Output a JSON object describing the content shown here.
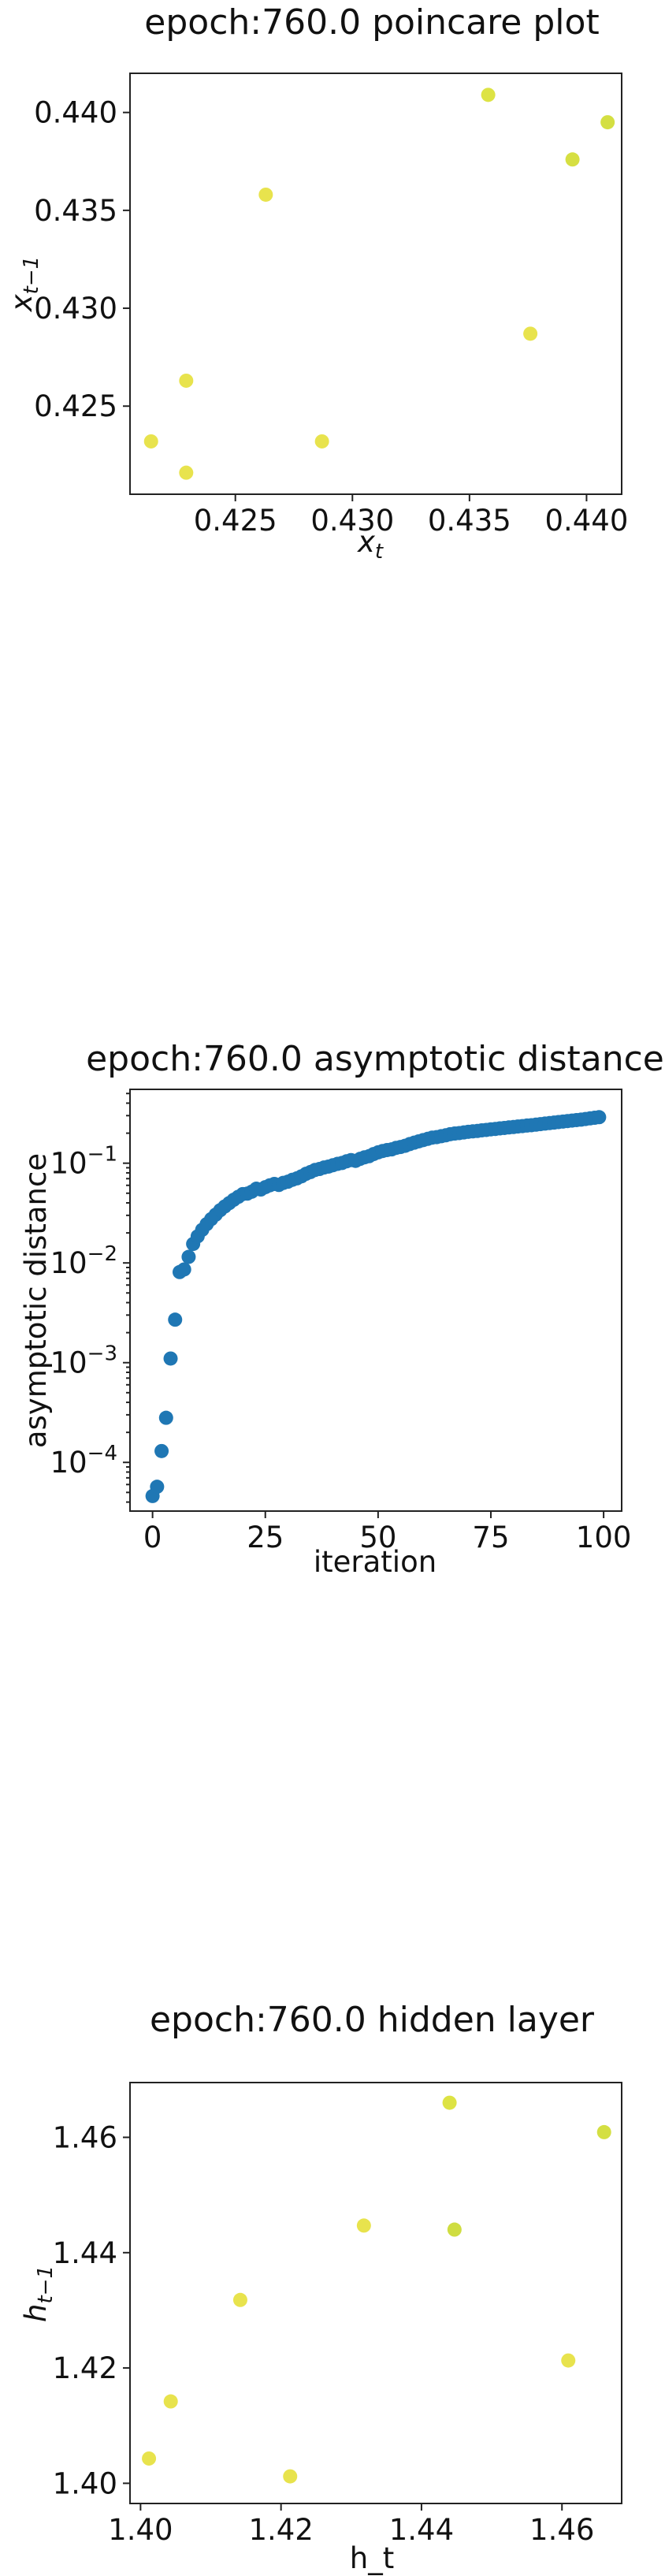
{
  "chart_data": [
    {
      "type": "scatter",
      "title": "epoch:760.0 poincare plot",
      "xlabel": "x",
      "xlabel_sub": "t",
      "ylabel": "x",
      "ylabel_sub": "t−1",
      "xlim": [
        0.4205,
        0.4415
      ],
      "ylim": [
        0.4205,
        0.442
      ],
      "xticks": [
        0.425,
        0.43,
        0.435,
        0.44
      ],
      "xtick_labels": [
        "0.425",
        "0.430",
        "0.435",
        "0.440"
      ],
      "yticks": [
        0.425,
        0.43,
        0.435,
        0.44
      ],
      "ytick_labels": [
        "0.425",
        "0.430",
        "0.435",
        "0.440"
      ],
      "grid": false,
      "points": [
        {
          "x": 0.4214,
          "y": 0.4232,
          "color": "#e6e03a"
        },
        {
          "x": 0.4229,
          "y": 0.4263,
          "color": "#e6e03a"
        },
        {
          "x": 0.4229,
          "y": 0.4216,
          "color": "#e6e03a"
        },
        {
          "x": 0.4263,
          "y": 0.4358,
          "color": "#e6e03a"
        },
        {
          "x": 0.4287,
          "y": 0.4232,
          "color": "#e6e03a"
        },
        {
          "x": 0.4358,
          "y": 0.4409,
          "color": "#d9e030"
        },
        {
          "x": 0.4376,
          "y": 0.4287,
          "color": "#e6e03a"
        },
        {
          "x": 0.4394,
          "y": 0.4376,
          "color": "#d2dc2e"
        },
        {
          "x": 0.4409,
          "y": 0.4395,
          "color": "#cfdb2d"
        }
      ]
    },
    {
      "type": "scatter",
      "title": "epoch:760.0 asymptotic distance",
      "xlabel": "iteration",
      "ylabel": "asymptotic distance",
      "yscale": "log",
      "xlim": [
        -5,
        104
      ],
      "ylim": [
        3.25e-05,
        0.55
      ],
      "xticks": [
        0,
        25,
        50,
        75,
        100
      ],
      "xtick_labels": [
        "0",
        "25",
        "50",
        "75",
        "100"
      ],
      "yticks": [
        0.0001,
        0.001,
        0.01,
        0.1
      ],
      "ytick_labels": [
        "10",
        "10",
        "10",
        "10"
      ],
      "ytick_exponents": [
        "−4",
        "−3",
        "−2",
        "−1"
      ],
      "grid": false,
      "marker_color": "#1f77b4",
      "x": [
        0,
        1,
        2,
        3,
        4,
        5,
        6,
        7,
        8,
        9,
        10,
        11,
        12,
        13,
        14,
        15,
        16,
        17,
        18,
        19,
        20,
        21,
        22,
        23,
        24,
        25,
        26,
        27,
        28,
        29,
        30,
        31,
        32,
        33,
        34,
        35,
        36,
        37,
        38,
        39,
        40,
        41,
        42,
        43,
        44,
        45,
        46,
        47,
        48,
        49,
        50,
        51,
        52,
        53,
        54,
        55,
        56,
        57,
        58,
        59,
        60,
        61,
        62,
        63,
        64,
        65,
        66,
        67,
        68,
        69,
        70,
        71,
        72,
        73,
        74,
        75,
        76,
        77,
        78,
        79,
        80,
        81,
        82,
        83,
        84,
        85,
        86,
        87,
        88,
        89,
        90,
        91,
        92,
        93,
        94,
        95,
        96,
        97,
        98,
        99
      ],
      "y": [
        4.6e-05,
        5.7e-05,
        0.00013,
        0.00028,
        0.0011,
        0.0027,
        0.0081,
        0.0086,
        0.0115,
        0.0155,
        0.0185,
        0.0215,
        0.0245,
        0.0275,
        0.0305,
        0.0338,
        0.0368,
        0.0398,
        0.043,
        0.046,
        0.049,
        0.0495,
        0.0518,
        0.0555,
        0.0545,
        0.0575,
        0.06,
        0.062,
        0.0605,
        0.0635,
        0.0652,
        0.0682,
        0.0705,
        0.0738,
        0.0782,
        0.0815,
        0.0855,
        0.0875,
        0.0905,
        0.0925,
        0.0955,
        0.0985,
        0.1005,
        0.1045,
        0.1075,
        0.1055,
        0.1105,
        0.1145,
        0.1175,
        0.1235,
        0.1285,
        0.1325,
        0.1355,
        0.1375,
        0.1425,
        0.1455,
        0.1495,
        0.1555,
        0.1605,
        0.1655,
        0.1705,
        0.1755,
        0.1805,
        0.1825,
        0.1865,
        0.1905,
        0.1955,
        0.1985,
        0.2005,
        0.2035,
        0.2065,
        0.2085,
        0.2105,
        0.2135,
        0.2155,
        0.2185,
        0.2205,
        0.2235,
        0.2255,
        0.2285,
        0.2305,
        0.2335,
        0.2355,
        0.2385,
        0.2405,
        0.2435,
        0.2465,
        0.2495,
        0.2525,
        0.2555,
        0.2585,
        0.2615,
        0.2645,
        0.2675,
        0.2705,
        0.2735,
        0.2775,
        0.2815,
        0.2855,
        0.2895
      ]
    },
    {
      "type": "scatter",
      "title": "epoch:760.0 hidden layer",
      "xlabel": "h_t",
      "ylabel": "h",
      "ylabel_sub": "t−1",
      "xlim": [
        1.3985,
        1.4685
      ],
      "ylim": [
        1.3965,
        1.4695
      ],
      "xticks": [
        1.4,
        1.42,
        1.44,
        1.46
      ],
      "xtick_labels": [
        "1.40",
        "1.42",
        "1.44",
        "1.46"
      ],
      "yticks": [
        1.4,
        1.42,
        1.44,
        1.46
      ],
      "ytick_labels": [
        "1.40",
        "1.42",
        "1.44",
        "1.46"
      ],
      "grid": false,
      "points": [
        {
          "x": 1.4012,
          "y": 1.4043,
          "color": "#e6e03a"
        },
        {
          "x": 1.4043,
          "y": 1.4142,
          "color": "#e6e03a"
        },
        {
          "x": 1.4142,
          "y": 1.4318,
          "color": "#e6e03a"
        },
        {
          "x": 1.4213,
          "y": 1.4012,
          "color": "#e6e03a"
        },
        {
          "x": 1.4318,
          "y": 1.4447,
          "color": "#e6e03a"
        },
        {
          "x": 1.444,
          "y": 1.466,
          "color": "#d9e030"
        },
        {
          "x": 1.4447,
          "y": 1.444,
          "color": "#cad92c"
        },
        {
          "x": 1.4609,
          "y": 1.4213,
          "color": "#e6e03a"
        },
        {
          "x": 1.466,
          "y": 1.4609,
          "color": "#cfdb2d"
        }
      ]
    }
  ]
}
